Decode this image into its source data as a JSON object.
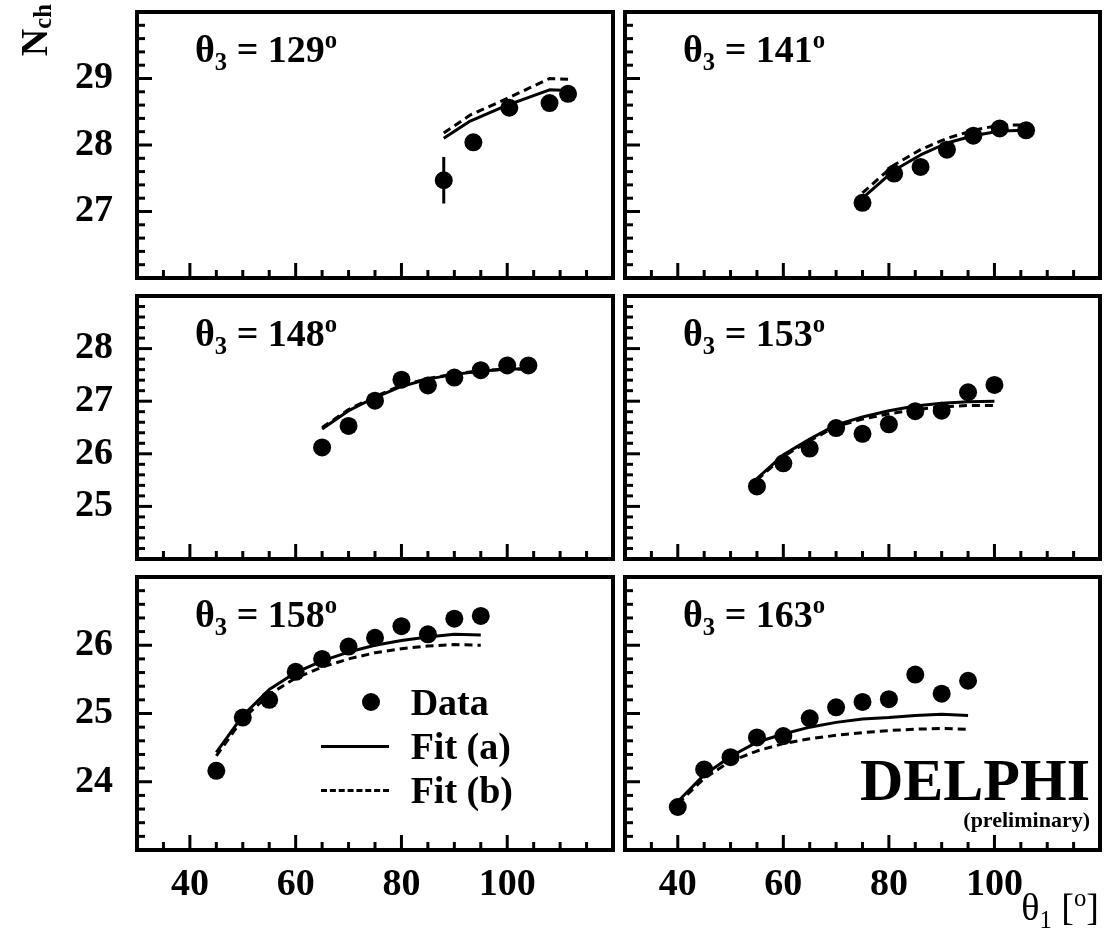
{
  "chart_data": [
    {
      "type": "line",
      "title": "θ$_{3}$ = 129$^{o}$",
      "ylabel": "N$_{ch}$",
      "tick_labels": "y",
      "xlim": [
        30,
        120
      ],
      "ylim": [
        26,
        30
      ],
      "xticks": [
        {
          "value": 35,
          "label": null
        },
        40,
        {
          "value": 45,
          "label": null
        },
        {
          "value": 50,
          "label": null
        },
        {
          "value": 55,
          "label": null
        },
        60,
        {
          "value": 65,
          "label": null
        },
        {
          "value": 70,
          "label": null
        },
        {
          "value": 75,
          "label": null
        },
        80,
        {
          "value": 85,
          "label": null
        },
        {
          "value": 90,
          "label": null
        },
        {
          "value": 95,
          "label": null
        },
        100,
        {
          "value": 105,
          "label": null
        },
        {
          "value": 110,
          "label": null
        },
        {
          "value": 115,
          "label": null
        }
      ],
      "yticks": [
        {
          "value": 26.2,
          "label": null
        },
        {
          "value": 26.4,
          "label": null
        },
        {
          "value": 26.6,
          "label": null
        },
        {
          "value": 26.8,
          "label": null
        },
        27,
        {
          "value": 27.2,
          "label": null
        },
        {
          "value": 27.4,
          "label": null
        },
        {
          "value": 27.6,
          "label": null
        },
        {
          "value": 27.8,
          "label": null
        },
        28,
        {
          "value": 28.2,
          "label": null
        },
        {
          "value": 28.4,
          "label": null
        },
        {
          "value": 28.6,
          "label": null
        },
        {
          "value": 28.8,
          "label": null
        },
        29,
        {
          "value": 29.2,
          "label": null
        },
        {
          "value": 29.4,
          "label": null
        },
        {
          "value": 29.6,
          "label": null
        },
        {
          "value": 29.8,
          "label": null
        }
      ],
      "series": [
        {
          "type": "scatter",
          "marker": "circle",
          "color": "#000000",
          "x": [
            88,
            93.6,
            100.4,
            108,
            111.5
          ],
          "values": [
            27.47,
            28.04,
            28.56,
            28.63,
            28.77
          ],
          "errors": [
            0.35,
            null,
            null,
            null,
            null
          ]
        },
        {
          "color": "#000000",
          "line_style": "solid",
          "x": [
            88,
            93,
            100,
            108,
            111.5
          ],
          "values": [
            28.1,
            28.36,
            28.6,
            28.83,
            28.82
          ]
        },
        {
          "color": "#000000",
          "line_style": "dashed",
          "x": [
            88,
            93,
            100,
            108,
            111.5
          ],
          "values": [
            28.18,
            28.45,
            28.7,
            29.0,
            28.99
          ]
        }
      ]
    },
    {
      "type": "line",
      "title": "θ$_{3}$ = 141$^{o}$",
      "tick_labels": false,
      "xlim": [
        30,
        120
      ],
      "ylim": [
        26,
        30
      ],
      "xticks": [
        {
          "value": 35,
          "label": null
        },
        40,
        {
          "value": 45,
          "label": null
        },
        {
          "value": 50,
          "label": null
        },
        {
          "value": 55,
          "label": null
        },
        60,
        {
          "value": 65,
          "label": null
        },
        {
          "value": 70,
          "label": null
        },
        {
          "value": 75,
          "label": null
        },
        80,
        {
          "value": 85,
          "label": null
        },
        {
          "value": 90,
          "label": null
        },
        {
          "value": 95,
          "label": null
        },
        100,
        {
          "value": 105,
          "label": null
        },
        {
          "value": 110,
          "label": null
        },
        {
          "value": 115,
          "label": null
        }
      ],
      "yticks": [
        {
          "value": 26.2,
          "label": null
        },
        {
          "value": 26.4,
          "label": null
        },
        {
          "value": 26.6,
          "label": null
        },
        {
          "value": 26.8,
          "label": null
        },
        27,
        {
          "value": 27.2,
          "label": null
        },
        {
          "value": 27.4,
          "label": null
        },
        {
          "value": 27.6,
          "label": null
        },
        {
          "value": 27.8,
          "label": null
        },
        28,
        {
          "value": 28.2,
          "label": null
        },
        {
          "value": 28.4,
          "label": null
        },
        {
          "value": 28.6,
          "label": null
        },
        {
          "value": 28.8,
          "label": null
        },
        29,
        {
          "value": 29.2,
          "label": null
        },
        {
          "value": 29.4,
          "label": null
        },
        {
          "value": 29.6,
          "label": null
        },
        {
          "value": 29.8,
          "label": null
        }
      ],
      "series": [
        {
          "type": "scatter",
          "marker": "circle",
          "color": "#000000",
          "x": [
            75,
            81,
            86,
            91,
            96,
            101,
            106
          ],
          "values": [
            27.13,
            27.57,
            27.67,
            27.93,
            28.14,
            28.25,
            28.22
          ]
        },
        {
          "color": "#000000",
          "line_style": "solid",
          "x": [
            75,
            81,
            86,
            91,
            96,
            101,
            106
          ],
          "values": [
            27.2,
            27.62,
            27.85,
            28.03,
            28.14,
            28.21,
            28.22
          ]
        },
        {
          "color": "#000000",
          "line_style": "dashed",
          "x": [
            75,
            81,
            86,
            91,
            96,
            101,
            106
          ],
          "values": [
            27.28,
            27.7,
            27.93,
            28.1,
            28.22,
            28.3,
            28.3
          ]
        }
      ]
    },
    {
      "type": "line",
      "title": "θ$_{3}$ = 148$^{o}$",
      "tick_labels": "y",
      "xlim": [
        30,
        120
      ],
      "ylim": [
        24,
        29
      ],
      "xticks": [
        {
          "value": 35,
          "label": null
        },
        40,
        {
          "value": 45,
          "label": null
        },
        {
          "value": 50,
          "label": null
        },
        {
          "value": 55,
          "label": null
        },
        60,
        {
          "value": 65,
          "label": null
        },
        {
          "value": 70,
          "label": null
        },
        {
          "value": 75,
          "label": null
        },
        80,
        {
          "value": 85,
          "label": null
        },
        {
          "value": 90,
          "label": null
        },
        {
          "value": 95,
          "label": null
        },
        100,
        {
          "value": 105,
          "label": null
        },
        {
          "value": 110,
          "label": null
        },
        {
          "value": 115,
          "label": null
        }
      ],
      "yticks": [
        {
          "value": 24.2,
          "label": null
        },
        {
          "value": 24.4,
          "label": null
        },
        {
          "value": 24.6,
          "label": null
        },
        {
          "value": 24.8,
          "label": null
        },
        25,
        {
          "value": 25.2,
          "label": null
        },
        {
          "value": 25.4,
          "label": null
        },
        {
          "value": 25.6,
          "label": null
        },
        {
          "value": 25.8,
          "label": null
        },
        26,
        {
          "value": 26.2,
          "label": null
        },
        {
          "value": 26.4,
          "label": null
        },
        {
          "value": 26.6,
          "label": null
        },
        {
          "value": 26.8,
          "label": null
        },
        27,
        {
          "value": 27.2,
          "label": null
        },
        {
          "value": 27.4,
          "label": null
        },
        {
          "value": 27.6,
          "label": null
        },
        {
          "value": 27.8,
          "label": null
        },
        28,
        {
          "value": 28.2,
          "label": null
        },
        {
          "value": 28.4,
          "label": null
        },
        {
          "value": 28.6,
          "label": null
        },
        {
          "value": 28.8,
          "label": null
        }
      ],
      "series": [
        {
          "type": "scatter",
          "marker": "circle",
          "color": "#000000",
          "x": [
            65,
            70,
            75,
            80,
            85,
            90,
            95,
            100,
            104
          ],
          "values": [
            26.12,
            26.53,
            27.01,
            27.41,
            27.3,
            27.45,
            27.59,
            27.68,
            27.68
          ]
        },
        {
          "color": "#000000",
          "line_style": "solid",
          "x": [
            65,
            70,
            75,
            80,
            85,
            90,
            95,
            100,
            104
          ],
          "values": [
            26.47,
            26.82,
            27.07,
            27.28,
            27.42,
            27.51,
            27.57,
            27.61,
            27.61
          ]
        },
        {
          "color": "#000000",
          "line_style": "dashed",
          "x": [
            65,
            70,
            75,
            80,
            85,
            90,
            95,
            100,
            104
          ],
          "values": [
            26.5,
            26.84,
            27.09,
            27.3,
            27.43,
            27.52,
            27.58,
            27.61,
            27.61
          ]
        }
      ]
    },
    {
      "type": "line",
      "title": "θ$_{3}$ = 153$^{o}$",
      "tick_labels": false,
      "xlim": [
        30,
        120
      ],
      "ylim": [
        24,
        29
      ],
      "xticks": [
        {
          "value": 35,
          "label": null
        },
        40,
        {
          "value": 45,
          "label": null
        },
        {
          "value": 50,
          "label": null
        },
        {
          "value": 55,
          "label": null
        },
        60,
        {
          "value": 65,
          "label": null
        },
        {
          "value": 70,
          "label": null
        },
        {
          "value": 75,
          "label": null
        },
        80,
        {
          "value": 85,
          "label": null
        },
        {
          "value": 90,
          "label": null
        },
        {
          "value": 95,
          "label": null
        },
        100,
        {
          "value": 105,
          "label": null
        },
        {
          "value": 110,
          "label": null
        },
        {
          "value": 115,
          "label": null
        }
      ],
      "yticks": [
        {
          "value": 24.2,
          "label": null
        },
        {
          "value": 24.4,
          "label": null
        },
        {
          "value": 24.6,
          "label": null
        },
        {
          "value": 24.8,
          "label": null
        },
        25,
        {
          "value": 25.2,
          "label": null
        },
        {
          "value": 25.4,
          "label": null
        },
        {
          "value": 25.6,
          "label": null
        },
        {
          "value": 25.8,
          "label": null
        },
        26,
        {
          "value": 26.2,
          "label": null
        },
        {
          "value": 26.4,
          "label": null
        },
        {
          "value": 26.6,
          "label": null
        },
        {
          "value": 26.8,
          "label": null
        },
        27,
        {
          "value": 27.2,
          "label": null
        },
        {
          "value": 27.4,
          "label": null
        },
        {
          "value": 27.6,
          "label": null
        },
        {
          "value": 27.8,
          "label": null
        },
        28,
        {
          "value": 28.2,
          "label": null
        },
        {
          "value": 28.4,
          "label": null
        },
        {
          "value": 28.6,
          "label": null
        },
        {
          "value": 28.8,
          "label": null
        }
      ],
      "series": [
        {
          "type": "scatter",
          "marker": "circle",
          "color": "#000000",
          "x": [
            55,
            60,
            65,
            70,
            75,
            80,
            85,
            90,
            95,
            100
          ],
          "values": [
            25.38,
            25.82,
            26.1,
            26.49,
            26.38,
            26.56,
            26.81,
            26.82,
            27.17,
            27.31
          ]
        },
        {
          "color": "#000000",
          "line_style": "solid",
          "x": [
            55,
            60,
            65,
            70,
            75,
            80,
            85,
            90,
            95,
            100
          ],
          "values": [
            25.53,
            25.98,
            26.28,
            26.55,
            26.7,
            26.82,
            26.91,
            26.96,
            26.99,
            27.0
          ]
        },
        {
          "color": "#000000",
          "line_style": "dashed",
          "x": [
            55,
            60,
            65,
            70,
            75,
            80,
            85,
            90,
            95,
            100
          ],
          "values": [
            25.5,
            25.95,
            26.25,
            26.52,
            26.66,
            26.76,
            26.84,
            26.89,
            26.92,
            26.92
          ]
        }
      ]
    },
    {
      "type": "line",
      "title": "θ$_{3}$ = 158$^{o}$",
      "legend": "bottom right",
      "xlim": [
        30,
        120
      ],
      "ylim": [
        23,
        27
      ],
      "xticks": [
        {
          "value": 35,
          "label": null
        },
        40,
        {
          "value": 45,
          "label": null
        },
        {
          "value": 50,
          "label": null
        },
        {
          "value": 55,
          "label": null
        },
        60,
        {
          "value": 65,
          "label": null
        },
        {
          "value": 70,
          "label": null
        },
        {
          "value": 75,
          "label": null
        },
        80,
        {
          "value": 85,
          "label": null
        },
        {
          "value": 90,
          "label": null
        },
        {
          "value": 95,
          "label": null
        },
        100,
        {
          "value": 105,
          "label": null
        },
        {
          "value": 110,
          "label": null
        },
        {
          "value": 115,
          "label": null
        }
      ],
      "yticks": [
        {
          "value": 23.2,
          "label": null
        },
        {
          "value": 23.4,
          "label": null
        },
        {
          "value": 23.6,
          "label": null
        },
        {
          "value": 23.8,
          "label": null
        },
        24,
        {
          "value": 24.2,
          "label": null
        },
        {
          "value": 24.4,
          "label": null
        },
        {
          "value": 24.6,
          "label": null
        },
        {
          "value": 24.8,
          "label": null
        },
        25,
        {
          "value": 25.2,
          "label": null
        },
        {
          "value": 25.4,
          "label": null
        },
        {
          "value": 25.6,
          "label": null
        },
        {
          "value": 25.8,
          "label": null
        },
        26,
        {
          "value": 26.2,
          "label": null
        },
        {
          "value": 26.4,
          "label": null
        },
        {
          "value": 26.6,
          "label": null
        },
        {
          "value": 26.8,
          "label": null
        }
      ],
      "series": [
        {
          "type": "scatter",
          "marker": "circle",
          "name": "Data",
          "color": "#000000",
          "x": [
            45,
            50,
            55,
            60,
            65,
            70,
            75,
            80,
            85,
            90,
            95
          ],
          "values": [
            24.16,
            24.94,
            25.2,
            25.61,
            25.8,
            25.98,
            26.11,
            26.28,
            26.16,
            26.39,
            26.43
          ]
        },
        {
          "name": "Fit (a)",
          "color": "#000000",
          "line_style": "solid",
          "x": [
            45,
            50,
            55,
            60,
            65,
            70,
            75,
            80,
            85,
            90,
            95
          ],
          "values": [
            24.43,
            24.97,
            25.35,
            25.6,
            25.77,
            25.9,
            26.0,
            26.07,
            26.12,
            26.16,
            26.15
          ]
        },
        {
          "name": "Fit (b)",
          "color": "#000000",
          "line_style": "dashed",
          "x": [
            45,
            50,
            55,
            60,
            65,
            70,
            75,
            80,
            85,
            90,
            95
          ],
          "values": [
            24.38,
            24.92,
            25.28,
            25.52,
            25.68,
            25.8,
            25.89,
            25.95,
            25.99,
            26.01,
            26.0
          ]
        }
      ]
    },
    {
      "type": "line",
      "title": "θ$_{3}$ = 163$^{o}$",
      "xlabel": "θ$_{1}$ [$^{o}$]",
      "tick_labels": "x",
      "xlim": [
        30,
        120
      ],
      "ylim": [
        23,
        27
      ],
      "annotations": [
        "DELPHI",
        "(preliminary)"
      ],
      "xticks": [
        {
          "value": 35,
          "label": null
        },
        40,
        {
          "value": 45,
          "label": null
        },
        {
          "value": 50,
          "label": null
        },
        {
          "value": 55,
          "label": null
        },
        60,
        {
          "value": 65,
          "label": null
        },
        {
          "value": 70,
          "label": null
        },
        {
          "value": 75,
          "label": null
        },
        80,
        {
          "value": 85,
          "label": null
        },
        {
          "value": 90,
          "label": null
        },
        {
          "value": 95,
          "label": null
        },
        100,
        {
          "value": 105,
          "label": null
        },
        {
          "value": 110,
          "label": null
        },
        {
          "value": 115,
          "label": null
        }
      ],
      "yticks": [
        {
          "value": 23.2,
          "label": null
        },
        {
          "value": 23.4,
          "label": null
        },
        {
          "value": 23.6,
          "label": null
        },
        {
          "value": 23.8,
          "label": null
        },
        24,
        {
          "value": 24.2,
          "label": null
        },
        {
          "value": 24.4,
          "label": null
        },
        {
          "value": 24.6,
          "label": null
        },
        {
          "value": 24.8,
          "label": null
        },
        25,
        {
          "value": 25.2,
          "label": null
        },
        {
          "value": 25.4,
          "label": null
        },
        {
          "value": 25.6,
          "label": null
        },
        {
          "value": 25.8,
          "label": null
        },
        26,
        {
          "value": 26.2,
          "label": null
        },
        {
          "value": 26.4,
          "label": null
        },
        {
          "value": 26.6,
          "label": null
        },
        {
          "value": 26.8,
          "label": null
        }
      ],
      "series": [
        {
          "type": "scatter",
          "marker": "circle",
          "color": "#000000",
          "x": [
            40,
            45,
            50,
            55,
            60,
            65,
            70,
            75,
            80,
            85,
            90,
            95
          ],
          "values": [
            23.63,
            24.18,
            24.36,
            24.65,
            24.67,
            24.93,
            25.09,
            25.17,
            25.21,
            25.57,
            25.29,
            25.48
          ]
        },
        {
          "color": "#000000",
          "line_style": "solid",
          "x": [
            40,
            45,
            50,
            55,
            60,
            65,
            70,
            75,
            80,
            85,
            90,
            95
          ],
          "values": [
            23.71,
            24.1,
            24.37,
            24.58,
            24.7,
            24.8,
            24.87,
            24.92,
            24.94,
            24.97,
            24.99,
            24.97
          ]
        },
        {
          "color": "#000000",
          "line_style": "dashed",
          "x": [
            40,
            45,
            50,
            55,
            60,
            65,
            70,
            75,
            80,
            85,
            90,
            95
          ],
          "values": [
            23.68,
            24.05,
            24.3,
            24.45,
            24.56,
            24.63,
            24.68,
            24.72,
            24.75,
            24.77,
            24.78,
            24.77
          ]
        }
      ]
    }
  ]
}
